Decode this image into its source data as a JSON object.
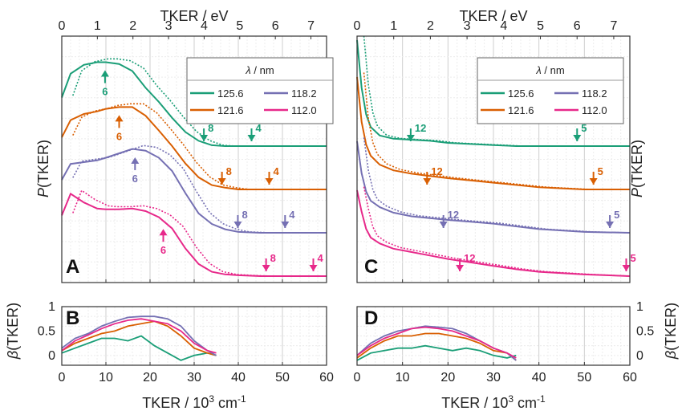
{
  "colors": {
    "125.6": "#1a9e77",
    "121.6": "#d95f02",
    "118.2": "#7570b3",
    "112.0": "#e7298a"
  },
  "top_axis": {
    "label": "TKER / eV",
    "ticks": [
      "0",
      "1",
      "2",
      "3",
      "4",
      "5",
      "6",
      "7"
    ]
  },
  "bottom_axis": {
    "label_main": "TKER / 10",
    "label_sup": "3",
    "label_unit": " cm",
    "label_sup2": "-1",
    "ticks": [
      "0",
      "10",
      "20",
      "30",
      "40",
      "50",
      "60"
    ]
  },
  "y_labels": {
    "p_italic": "P",
    "p_rest": "(TKER)",
    "beta_italic": "β",
    "beta_rest": "(TKER)"
  },
  "beta_ticks": [
    "1",
    "0.5",
    "0"
  ],
  "legend": {
    "title_italic": "λ",
    "title_rest": " / nm",
    "entries": [
      "125.6",
      "121.6",
      "118.2",
      "112.0"
    ]
  },
  "panel_letters": [
    "A",
    "B",
    "C",
    "D"
  ],
  "chart_data": [
    {
      "type": "line",
      "panel": "A",
      "x_units": "10^3 cm^-1",
      "xlim": [
        0,
        60
      ],
      "xlabel": "TKER / 10^3 cm^-1",
      "ylabel": "P(TKER)",
      "note": "stacked traces, solid and dotted variants, offset by wavelength",
      "series": [
        {
          "name": "125.6",
          "x": [
            0,
            2,
            5,
            8,
            10,
            13,
            16,
            19,
            22,
            25,
            28,
            31,
            34,
            37,
            40,
            45,
            50,
            55,
            60
          ],
          "y": [
            0.55,
            0.82,
            0.92,
            0.95,
            0.95,
            0.93,
            0.85,
            0.66,
            0.5,
            0.32,
            0.16,
            0.06,
            0.01,
            0,
            0,
            0,
            0,
            0,
            0
          ]
        },
        {
          "name": "121.6",
          "x": [
            0,
            2,
            5,
            8,
            10,
            13,
            16,
            19,
            22,
            25,
            28,
            31,
            34,
            37,
            40,
            45,
            50,
            55,
            60
          ],
          "y": [
            0.6,
            0.8,
            0.87,
            0.9,
            0.93,
            0.95,
            0.95,
            0.85,
            0.68,
            0.5,
            0.3,
            0.14,
            0.05,
            0.02,
            0,
            0,
            0,
            0,
            0
          ]
        },
        {
          "name": "118.2",
          "x": [
            0,
            2,
            5,
            8,
            10,
            13,
            16,
            19,
            22,
            25,
            28,
            31,
            34,
            37,
            40,
            45,
            50,
            55,
            60
          ],
          "y": [
            0.6,
            0.78,
            0.8,
            0.82,
            0.85,
            0.9,
            0.95,
            0.93,
            0.85,
            0.7,
            0.45,
            0.22,
            0.1,
            0.04,
            0.01,
            0,
            0,
            0,
            0
          ]
        },
        {
          "name": "112.0",
          "x": [
            0,
            2,
            5,
            8,
            10,
            13,
            16,
            19,
            22,
            25,
            28,
            31,
            34,
            37,
            40,
            45,
            50,
            55,
            60
          ],
          "y": [
            0.7,
            0.95,
            0.85,
            0.78,
            0.77,
            0.77,
            0.78,
            0.75,
            0.68,
            0.55,
            0.32,
            0.14,
            0.05,
            0.02,
            0.01,
            0,
            0,
            0,
            0
          ]
        }
      ],
      "markers": [
        {
          "series": "125.6",
          "x": 9.8,
          "label": "6",
          "dir": "up"
        },
        {
          "series": "125.6",
          "x": 32.2,
          "label": "8",
          "dir": "down"
        },
        {
          "series": "125.6",
          "x": 43.0,
          "label": "4",
          "dir": "down"
        },
        {
          "series": "121.6",
          "x": 13.0,
          "label": "6",
          "dir": "up"
        },
        {
          "series": "121.6",
          "x": 36.3,
          "label": "8",
          "dir": "down"
        },
        {
          "series": "121.6",
          "x": 47.0,
          "label": "4",
          "dir": "down"
        },
        {
          "series": "118.2",
          "x": 16.6,
          "label": "6",
          "dir": "up"
        },
        {
          "series": "118.2",
          "x": 39.9,
          "label": "8",
          "dir": "down"
        },
        {
          "series": "118.2",
          "x": 50.6,
          "label": "4",
          "dir": "down"
        },
        {
          "series": "112.0",
          "x": 23.0,
          "label": "6",
          "dir": "up"
        },
        {
          "series": "112.0",
          "x": 46.3,
          "label": "8",
          "dir": "down"
        },
        {
          "series": "112.0",
          "x": 57.0,
          "label": "4",
          "dir": "down"
        }
      ]
    },
    {
      "type": "line",
      "panel": "B",
      "xlim": [
        0,
        60
      ],
      "ylim": [
        -0.2,
        1
      ],
      "ylabel": "β(TKER)",
      "series": [
        {
          "name": "125.6",
          "x": [
            0,
            3,
            6,
            9,
            12,
            15,
            18,
            21,
            24,
            27,
            30,
            33,
            35
          ],
          "y": [
            0.05,
            0.15,
            0.25,
            0.35,
            0.35,
            0.3,
            0.4,
            0.2,
            0.05,
            -0.1,
            0.0,
            0.05,
            0.0
          ]
        },
        {
          "name": "121.6",
          "x": [
            0,
            3,
            6,
            9,
            12,
            15,
            18,
            21,
            24,
            27,
            30,
            33,
            35
          ],
          "y": [
            0.1,
            0.25,
            0.35,
            0.45,
            0.5,
            0.6,
            0.65,
            0.7,
            0.6,
            0.4,
            0.15,
            0.05,
            0.0
          ]
        },
        {
          "name": "118.2",
          "x": [
            0,
            3,
            6,
            9,
            12,
            15,
            18,
            21,
            24,
            27,
            30,
            33,
            35
          ],
          "y": [
            0.15,
            0.35,
            0.45,
            0.6,
            0.7,
            0.78,
            0.8,
            0.8,
            0.75,
            0.6,
            0.3,
            0.1,
            0.0
          ]
        },
        {
          "name": "112.0",
          "x": [
            0,
            3,
            6,
            9,
            12,
            15,
            18,
            21,
            24,
            27,
            30,
            33,
            35
          ],
          "y": [
            0.1,
            0.3,
            0.42,
            0.55,
            0.65,
            0.72,
            0.75,
            0.7,
            0.65,
            0.5,
            0.25,
            0.1,
            0.05
          ]
        }
      ]
    },
    {
      "type": "line",
      "panel": "C",
      "xlim": [
        0,
        60
      ],
      "ylabel": "P(TKER)",
      "series": [
        {
          "name": "125.6",
          "x": [
            0,
            1,
            2,
            3,
            5,
            8,
            12,
            16,
            20,
            25,
            30,
            35,
            40,
            50,
            60
          ],
          "y": [
            1.0,
            0.55,
            0.3,
            0.18,
            0.1,
            0.07,
            0.06,
            0.05,
            0.03,
            0.02,
            0.01,
            0,
            0,
            0,
            0
          ]
        },
        {
          "name": "121.6",
          "x": [
            0,
            1,
            2,
            3,
            5,
            8,
            12,
            16,
            20,
            25,
            30,
            35,
            40,
            50,
            60
          ],
          "y": [
            1.0,
            0.6,
            0.4,
            0.3,
            0.22,
            0.17,
            0.14,
            0.12,
            0.1,
            0.08,
            0.06,
            0.04,
            0.02,
            0,
            0
          ]
        },
        {
          "name": "118.2",
          "x": [
            0,
            1,
            2,
            3,
            5,
            8,
            12,
            16,
            20,
            25,
            30,
            35,
            40,
            50,
            60
          ],
          "y": [
            1.0,
            0.65,
            0.45,
            0.35,
            0.28,
            0.22,
            0.18,
            0.16,
            0.14,
            0.12,
            0.1,
            0.07,
            0.04,
            0.01,
            0
          ]
        },
        {
          "name": "112.0",
          "x": [
            0,
            1,
            2,
            3,
            5,
            8,
            12,
            16,
            20,
            25,
            30,
            35,
            40,
            50,
            60
          ],
          "y": [
            1.0,
            0.75,
            0.55,
            0.45,
            0.38,
            0.32,
            0.28,
            0.24,
            0.2,
            0.16,
            0.12,
            0.08,
            0.05,
            0.02,
            0
          ]
        }
      ],
      "markers": [
        {
          "series": "125.6",
          "x": 11.8,
          "label": "12",
          "dir": "down"
        },
        {
          "series": "125.6",
          "x": 48.4,
          "label": "5",
          "dir": "down"
        },
        {
          "series": "121.6",
          "x": 15.4,
          "label": "12",
          "dir": "down"
        },
        {
          "series": "121.6",
          "x": 52.0,
          "label": "5",
          "dir": "down"
        },
        {
          "series": "118.2",
          "x": 19.0,
          "label": "12",
          "dir": "down"
        },
        {
          "series": "118.2",
          "x": 55.6,
          "label": "5",
          "dir": "down"
        },
        {
          "series": "112.0",
          "x": 22.6,
          "label": "12",
          "dir": "down"
        },
        {
          "series": "112.0",
          "x": 59.2,
          "label": "5",
          "dir": "down"
        }
      ]
    },
    {
      "type": "line",
      "panel": "D",
      "xlim": [
        0,
        60
      ],
      "ylim": [
        -0.2,
        1
      ],
      "ylabel": "β(TKER)",
      "series": [
        {
          "name": "125.6",
          "x": [
            0,
            3,
            6,
            9,
            12,
            15,
            18,
            21,
            24,
            27,
            30,
            33,
            35
          ],
          "y": [
            -0.1,
            0.05,
            0.1,
            0.15,
            0.15,
            0.2,
            0.15,
            0.1,
            0.15,
            0.1,
            0.0,
            -0.05,
            0.0
          ]
        },
        {
          "name": "121.6",
          "x": [
            0,
            3,
            6,
            9,
            12,
            15,
            18,
            21,
            24,
            27,
            30,
            33,
            35
          ],
          "y": [
            -0.05,
            0.15,
            0.3,
            0.4,
            0.4,
            0.45,
            0.45,
            0.4,
            0.35,
            0.25,
            0.1,
            0.05,
            -0.1
          ]
        },
        {
          "name": "118.2",
          "x": [
            0,
            3,
            6,
            9,
            12,
            15,
            18,
            21,
            24,
            27,
            30,
            33,
            35
          ],
          "y": [
            0.0,
            0.25,
            0.4,
            0.5,
            0.55,
            0.6,
            0.58,
            0.55,
            0.45,
            0.3,
            0.15,
            0.05,
            -0.1
          ]
        },
        {
          "name": "112.0",
          "x": [
            0,
            3,
            6,
            9,
            12,
            15,
            18,
            21,
            24,
            27,
            30,
            33,
            35
          ],
          "y": [
            0.0,
            0.2,
            0.35,
            0.45,
            0.55,
            0.58,
            0.55,
            0.5,
            0.4,
            0.3,
            0.15,
            0.05,
            -0.05
          ]
        }
      ]
    }
  ]
}
